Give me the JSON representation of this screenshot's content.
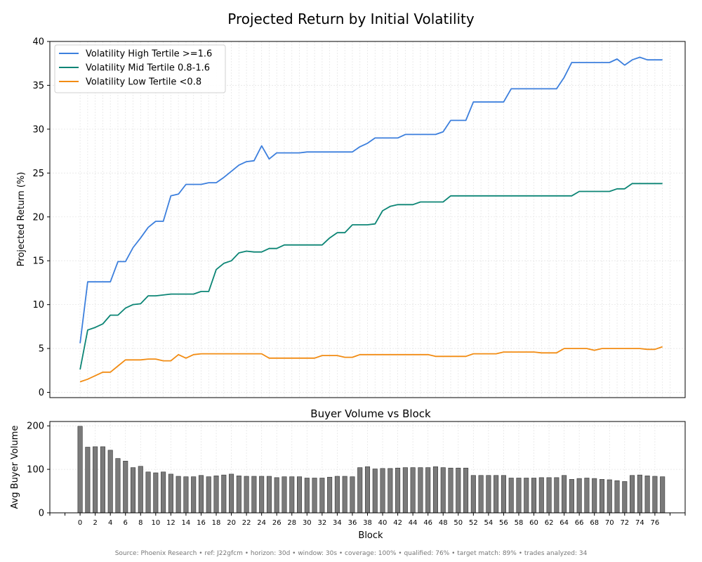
{
  "title": "Projected Return by Initial Volatility",
  "footer": "Source: Phoenix Research • ref: J22gfcm • horizon: 30d • window: 30s • coverage: 100% • qualified: 76% • target match: 89% • trades analyzed: 34",
  "chart_data": [
    {
      "type": "line",
      "ylabel": "Projected Return (%)",
      "ylim": [
        -0.6,
        40
      ],
      "yticks": [
        0,
        5,
        10,
        15,
        20,
        25,
        30,
        35,
        40
      ],
      "xlim": [
        -4,
        80
      ],
      "grid": true,
      "legend_position": "top-left",
      "x": [
        0,
        1,
        2,
        3,
        4,
        5,
        6,
        7,
        8,
        9,
        10,
        11,
        12,
        13,
        14,
        15,
        16,
        17,
        18,
        19,
        20,
        21,
        22,
        23,
        24,
        25,
        26,
        27,
        28,
        29,
        30,
        31,
        32,
        33,
        34,
        35,
        36,
        37,
        38,
        39,
        40,
        41,
        42,
        43,
        44,
        45,
        46,
        47,
        48,
        49,
        50,
        51,
        52,
        53,
        54,
        55,
        56,
        57,
        58,
        59,
        60,
        61,
        62,
        63,
        64,
        65,
        66,
        67,
        68,
        69,
        70,
        71,
        72,
        73,
        74,
        75,
        76,
        77
      ],
      "series": [
        {
          "name": "Volatility High Tertile >=1.6",
          "color": "#3c7fdd",
          "values": [
            5.6,
            12.6,
            12.6,
            12.6,
            12.6,
            14.9,
            14.9,
            16.5,
            17.6,
            18.8,
            19.5,
            19.5,
            22.4,
            22.6,
            23.7,
            23.7,
            23.7,
            23.9,
            23.9,
            24.5,
            25.2,
            25.9,
            26.3,
            26.4,
            28.1,
            26.6,
            27.3,
            27.3,
            27.3,
            27.3,
            27.4,
            27.4,
            27.4,
            27.4,
            27.4,
            27.4,
            27.4,
            28.0,
            28.4,
            29.0,
            29.0,
            29.0,
            29.0,
            29.4,
            29.4,
            29.4,
            29.4,
            29.4,
            29.7,
            31.0,
            31.0,
            31.0,
            33.1,
            33.1,
            33.1,
            33.1,
            33.1,
            34.6,
            34.6,
            34.6,
            34.6,
            34.6,
            34.6,
            34.6,
            35.9,
            37.6,
            37.6,
            37.6,
            37.6,
            37.6,
            37.6,
            38.0,
            37.3,
            37.9,
            38.2,
            37.9,
            37.9,
            37.9
          ]
        },
        {
          "name": "Volatility Mid Tertile 0.8-1.6",
          "color": "#0c8575",
          "values": [
            2.6,
            7.1,
            7.4,
            7.8,
            8.8,
            8.8,
            9.6,
            10.0,
            10.1,
            11.0,
            11.0,
            11.1,
            11.2,
            11.2,
            11.2,
            11.2,
            11.5,
            11.5,
            14.0,
            14.7,
            15.0,
            15.9,
            16.1,
            16.0,
            16.0,
            16.4,
            16.4,
            16.8,
            16.8,
            16.8,
            16.8,
            16.8,
            16.8,
            17.6,
            18.2,
            18.2,
            19.1,
            19.1,
            19.1,
            19.2,
            20.7,
            21.2,
            21.4,
            21.4,
            21.4,
            21.7,
            21.7,
            21.7,
            21.7,
            22.4,
            22.4,
            22.4,
            22.4,
            22.4,
            22.4,
            22.4,
            22.4,
            22.4,
            22.4,
            22.4,
            22.4,
            22.4,
            22.4,
            22.4,
            22.4,
            22.4,
            22.9,
            22.9,
            22.9,
            22.9,
            22.9,
            23.2,
            23.2,
            23.8,
            23.8,
            23.8,
            23.8,
            23.8
          ]
        },
        {
          "name": "Volatility Low Tertile <0.8",
          "color": "#f28c13",
          "values": [
            1.2,
            1.5,
            1.9,
            2.3,
            2.3,
            3.0,
            3.7,
            3.7,
            3.7,
            3.8,
            3.8,
            3.6,
            3.6,
            4.3,
            3.9,
            4.3,
            4.4,
            4.4,
            4.4,
            4.4,
            4.4,
            4.4,
            4.4,
            4.4,
            4.4,
            3.9,
            3.9,
            3.9,
            3.9,
            3.9,
            3.9,
            3.9,
            4.2,
            4.2,
            4.2,
            4.0,
            4.0,
            4.3,
            4.3,
            4.3,
            4.3,
            4.3,
            4.3,
            4.3,
            4.3,
            4.3,
            4.3,
            4.1,
            4.1,
            4.1,
            4.1,
            4.1,
            4.4,
            4.4,
            4.4,
            4.4,
            4.6,
            4.6,
            4.6,
            4.6,
            4.6,
            4.5,
            4.5,
            4.5,
            5.0,
            5.0,
            5.0,
            5.0,
            4.8,
            5.0,
            5.0,
            5.0,
            5.0,
            5.0,
            5.0,
            4.9,
            4.9,
            5.2
          ]
        }
      ]
    },
    {
      "type": "bar",
      "title": "Buyer Volume vs Block",
      "xlabel": "Block",
      "ylabel": "Avg Buyer Volume",
      "ylim": [
        0,
        210
      ],
      "yticks": [
        0,
        100,
        200
      ],
      "xlim": [
        -4,
        80
      ],
      "xticks": [
        0,
        2,
        4,
        6,
        8,
        10,
        12,
        14,
        16,
        18,
        20,
        22,
        24,
        26,
        28,
        30,
        32,
        34,
        36,
        38,
        40,
        42,
        44,
        46,
        48,
        50,
        52,
        54,
        56,
        58,
        60,
        62,
        64,
        66,
        68,
        70,
        72,
        74,
        76
      ],
      "grid": true,
      "color": "#7a7a7a",
      "categories": [
        0,
        1,
        2,
        3,
        4,
        5,
        6,
        7,
        8,
        9,
        10,
        11,
        12,
        13,
        14,
        15,
        16,
        17,
        18,
        19,
        20,
        21,
        22,
        23,
        24,
        25,
        26,
        27,
        28,
        29,
        30,
        31,
        32,
        33,
        34,
        35,
        36,
        37,
        38,
        39,
        40,
        41,
        42,
        43,
        44,
        45,
        46,
        47,
        48,
        49,
        50,
        51,
        52,
        53,
        54,
        55,
        56,
        57,
        58,
        59,
        60,
        61,
        62,
        63,
        64,
        65,
        66,
        67,
        68,
        69,
        70,
        71,
        72,
        73,
        74,
        75,
        76,
        77
      ],
      "values": [
        199,
        151,
        152,
        152,
        144,
        125,
        119,
        104,
        107,
        94,
        92,
        94,
        89,
        84,
        83,
        83,
        86,
        83,
        85,
        87,
        89,
        85,
        84,
        84,
        84,
        84,
        81,
        83,
        83,
        83,
        80,
        80,
        80,
        82,
        84,
        84,
        83,
        104,
        106,
        101,
        102,
        102,
        103,
        104,
        104,
        104,
        104,
        106,
        104,
        103,
        103,
        103,
        86,
        86,
        86,
        86,
        86,
        80,
        80,
        80,
        80,
        81,
        81,
        81,
        86,
        77,
        79,
        80,
        79,
        77,
        76,
        74,
        72,
        86,
        87,
        85,
        84,
        83
      ]
    }
  ]
}
